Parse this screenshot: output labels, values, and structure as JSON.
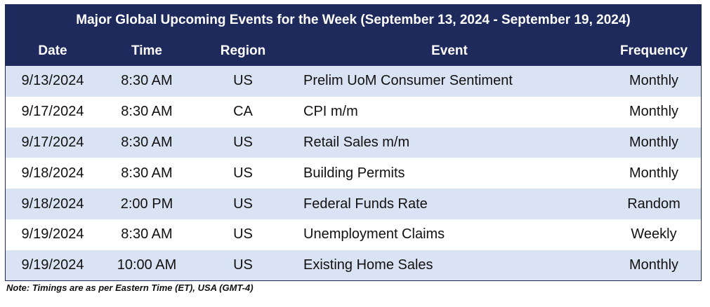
{
  "table": {
    "title": "Major Global Upcoming Events for the Week (September 13, 2024 - September 19, 2024)",
    "columns": {
      "date": "Date",
      "time": "Time",
      "region": "Region",
      "event": "Event",
      "frequency": "Frequency"
    },
    "rows": [
      {
        "date": "9/13/2024",
        "time": "8:30 AM",
        "region": "US",
        "event": "Prelim UoM Consumer Sentiment",
        "frequency": "Monthly"
      },
      {
        "date": "9/17/2024",
        "time": "8:30 AM",
        "region": "CA",
        "event": "CPI m/m",
        "frequency": "Monthly"
      },
      {
        "date": "9/17/2024",
        "time": "8:30 AM",
        "region": "US",
        "event": "Retail Sales m/m",
        "frequency": "Monthly"
      },
      {
        "date": "9/18/2024",
        "time": "8:30 AM",
        "region": "US",
        "event": "Building Permits",
        "frequency": "Monthly"
      },
      {
        "date": "9/18/2024",
        "time": "2:00 PM",
        "region": "US",
        "event": "Federal Funds Rate",
        "frequency": "Random"
      },
      {
        "date": "9/19/2024",
        "time": "8:30 AM",
        "region": "US",
        "event": "Unemployment Claims",
        "frequency": "Weekly"
      },
      {
        "date": "9/19/2024",
        "time": "10:00 AM",
        "region": "US",
        "event": "Existing Home Sales",
        "frequency": "Monthly"
      }
    ],
    "note": "Note: Timings are as per Eastern Time (ET), USA (GMT-4)"
  },
  "colors": {
    "header_bg": "#1f2a5c",
    "shaded_row": "#dae3f3",
    "plain_row": "#ffffff"
  }
}
